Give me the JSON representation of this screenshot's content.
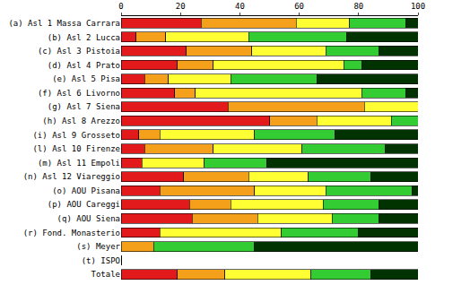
{
  "chart_data": {
    "type": "bar",
    "orientation": "horizontal",
    "stacked": true,
    "grid": false,
    "categories": [
      "(a) Asl 1 Massa Carrara",
      "(b) Asl 2 Lucca",
      "(c) Asl 3 Pistoia",
      "(d) Asl 4 Prato",
      "(e) Asl 5 Pisa",
      "(f) Asl 6 Livorno",
      "(g) Asl 7 Siena",
      "(h) Asl 8 Arezzo",
      "(i) Asl 9 Grosseto",
      "(l) Asl 10 Firenze",
      "(m) Asl 11 Empoli",
      "(n) Asl 12 Viareggio",
      "(o) AOU Pisana",
      "(p) AOU Careggi",
      "(q) AOU Siena",
      "(r) Fond. Monasterio",
      "(s) Meyer",
      "(t) ISPO",
      "Totale"
    ],
    "series": [
      {
        "color": "#e31a1c",
        "values": [
          27,
          5,
          22,
          19,
          8,
          18,
          36,
          50,
          6,
          8,
          7,
          21,
          13,
          23,
          24,
          13,
          0,
          0,
          19
        ]
      },
      {
        "color": "#f5a01a",
        "values": [
          32,
          10,
          22,
          12,
          8,
          7,
          46,
          16,
          7,
          23,
          0,
          22,
          32,
          14,
          22,
          0,
          11,
          0,
          16
        ]
      },
      {
        "color": "#ffff33",
        "values": [
          18,
          28,
          25,
          44,
          21,
          56,
          18,
          25,
          32,
          30,
          21,
          20,
          24,
          31,
          25,
          41,
          0,
          0,
          29
        ]
      },
      {
        "color": "#33cc33",
        "values": [
          19,
          33,
          18,
          6,
          29,
          15,
          0,
          9,
          27,
          28,
          21,
          21,
          29,
          19,
          16,
          26,
          34,
          0,
          20
        ]
      },
      {
        "color": "#003300",
        "values": [
          4,
          24,
          13,
          19,
          34,
          4,
          0,
          0,
          28,
          11,
          51,
          16,
          2,
          13,
          13,
          20,
          55,
          0,
          16
        ]
      }
    ],
    "xlim": [
      0,
      100
    ],
    "xticks": [
      0,
      20,
      40,
      60,
      80,
      100
    ]
  }
}
